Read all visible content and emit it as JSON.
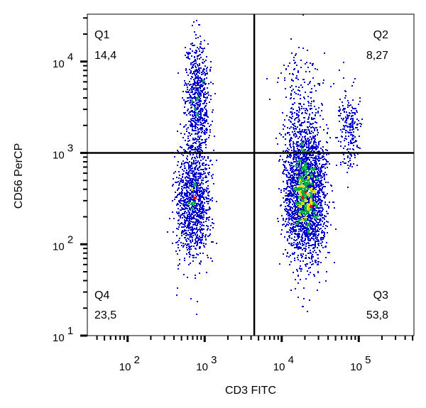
{
  "chart_data": {
    "type": "scatter",
    "xlabel": "CD3 FITC",
    "ylabel": "CD56 PerCP",
    "x_scale": "log",
    "y_scale": "log",
    "xlim": [
      30,
      520000
    ],
    "ylim": [
      10,
      33000
    ],
    "x_ticks": [
      {
        "base": "10",
        "exp": "2",
        "value": 100
      },
      {
        "base": "10",
        "exp": "3",
        "value": 1000
      },
      {
        "base": "10",
        "exp": "4",
        "value": 10000
      },
      {
        "base": "10",
        "exp": "5",
        "value": 100000
      }
    ],
    "y_ticks": [
      {
        "base": "10",
        "exp": "1",
        "value": 10
      },
      {
        "base": "10",
        "exp": "2",
        "value": 100
      },
      {
        "base": "10",
        "exp": "3",
        "value": 1000
      },
      {
        "base": "10",
        "exp": "4",
        "value": 10000
      }
    ],
    "gates": {
      "x": 4400,
      "y": 1000
    },
    "quadrants": [
      {
        "name": "Q1",
        "percent": "14,4",
        "position": "top-left"
      },
      {
        "name": "Q2",
        "percent": "8,27",
        "position": "top-right"
      },
      {
        "name": "Q3",
        "percent": "53,8",
        "position": "bottom-right"
      },
      {
        "name": "Q4",
        "percent": "23,5",
        "position": "bottom-left"
      }
    ],
    "populations": [
      {
        "x_center": 800,
        "y_center": 3900,
        "x_spread_decades": 0.08,
        "y_spread_decades": 0.28,
        "events": 700
      },
      {
        "x_center": 700,
        "y_center": 320,
        "x_spread_decades": 0.11,
        "y_spread_decades": 0.3,
        "events": 1200
      },
      {
        "x_center": 20000,
        "y_center": 380,
        "x_spread_decades": 0.13,
        "y_spread_decades": 0.33,
        "events": 2600
      },
      {
        "x_center": 75000,
        "y_center": 1900,
        "x_spread_decades": 0.07,
        "y_spread_decades": 0.2,
        "events": 220
      },
      {
        "x_center": 18000,
        "y_center": 2500,
        "x_spread_decades": 0.15,
        "y_spread_decades": 0.3,
        "events": 300
      }
    ],
    "density_colors": [
      "#0000cc",
      "#00aa44",
      "#dddd00",
      "#ff0000"
    ],
    "grid": false,
    "legend": "none"
  }
}
